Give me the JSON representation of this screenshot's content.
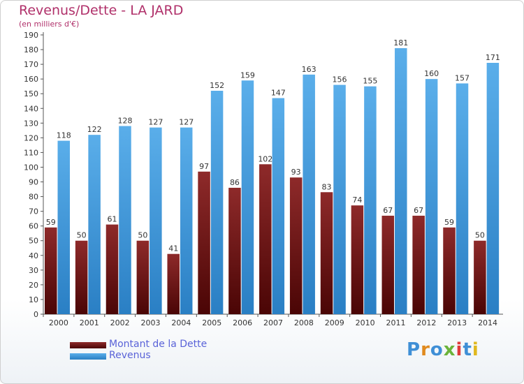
{
  "colors": {
    "dette": "#7a1a1a",
    "revenus": "#3f9ae0",
    "title": "#b0306a",
    "legend_text": "#5a63d8"
  },
  "chart_data": {
    "type": "bar",
    "title": "Revenus/Dette - LA JARD",
    "subtitle": "(en milliers d'€)",
    "categories": [
      "2000",
      "2001",
      "2002",
      "2003",
      "2004",
      "2005",
      "2006",
      "2007",
      "2008",
      "2009",
      "2010",
      "2011",
      "2012",
      "2013",
      "2014"
    ],
    "series": [
      {
        "name": "Montant de la Dette",
        "values": [
          59,
          50,
          61,
          50,
          41,
          97,
          86,
          102,
          93,
          83,
          74,
          67,
          67,
          59,
          50
        ]
      },
      {
        "name": "Revenus",
        "values": [
          118,
          122,
          128,
          127,
          127,
          152,
          159,
          147,
          163,
          156,
          155,
          181,
          160,
          157,
          171
        ]
      }
    ],
    "ylim": [
      0,
      190
    ],
    "yticks": [
      0,
      10,
      20,
      30,
      40,
      50,
      60,
      70,
      80,
      90,
      100,
      110,
      120,
      130,
      140,
      150,
      160,
      170,
      180,
      190
    ],
    "grid": false,
    "legend_position": "bottom-left"
  },
  "logo": {
    "text": "Proxiti"
  }
}
